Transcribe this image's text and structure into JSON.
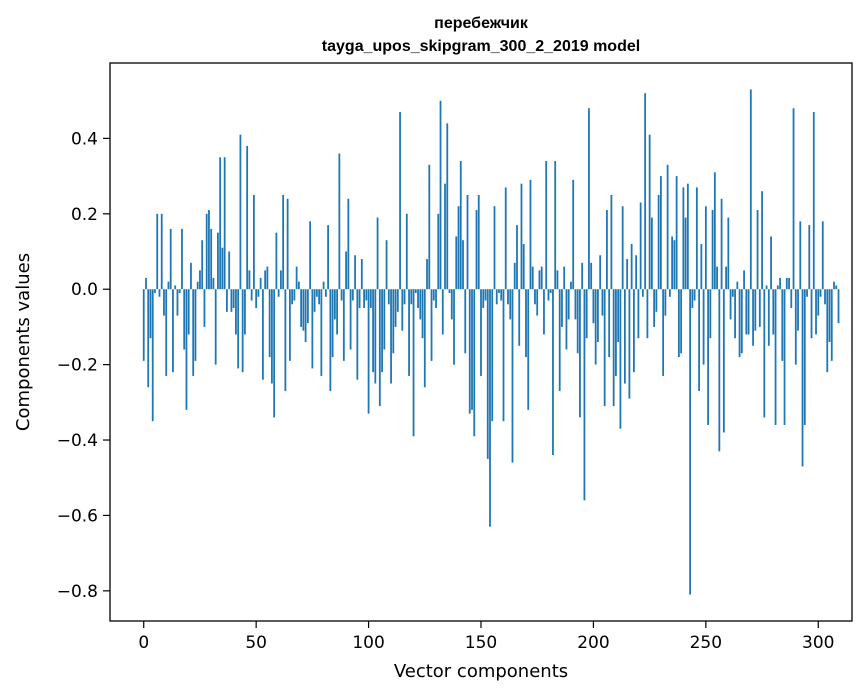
{
  "chart_data": {
    "type": "bar",
    "title": "перебежчик",
    "subtitle": "tayga_upos_skipgram_300_2_2019 model",
    "xlabel": "Vector components",
    "ylabel": "Components values",
    "xlim": [
      -15,
      315
    ],
    "ylim": [
      -0.88,
      0.6
    ],
    "xticks": [
      0,
      50,
      100,
      150,
      200,
      250,
      300
    ],
    "yticks": [
      -0.8,
      -0.6,
      -0.4,
      -0.2,
      0.0,
      0.2,
      0.4
    ],
    "ytick_labels": [
      "−0.8",
      "−0.6",
      "−0.4",
      "−0.2",
      "0.0",
      "0.2",
      "0.4"
    ],
    "bar_color": "#1f77b4",
    "grid": false,
    "values": [
      -0.19,
      0.03,
      -0.26,
      -0.13,
      -0.35,
      -0.01,
      0.2,
      -0.02,
      0.2,
      -0.07,
      -0.23,
      0.02,
      0.16,
      -0.22,
      0.01,
      -0.07,
      -0.01,
      0.16,
      -0.16,
      -0.32,
      -0.12,
      0.07,
      -0.23,
      -0.19,
      0.02,
      0.05,
      0.13,
      -0.1,
      0.2,
      0.21,
      0.16,
      0.03,
      -0.2,
      0.15,
      0.35,
      0.11,
      0.35,
      -0.06,
      0.1,
      -0.06,
      -0.05,
      -0.12,
      -0.21,
      0.41,
      -0.22,
      -0.12,
      0.38,
      0.05,
      -0.03,
      0.25,
      -0.05,
      -0.02,
      0.03,
      -0.24,
      0.05,
      0.06,
      -0.18,
      -0.25,
      -0.34,
      0.15,
      -0.02,
      0.05,
      0.25,
      -0.27,
      0.24,
      -0.19,
      -0.04,
      -0.03,
      0.06,
      0.02,
      -0.1,
      -0.11,
      -0.14,
      -0.09,
      0.18,
      -0.21,
      -0.06,
      -0.02,
      -0.04,
      -0.23,
      0.02,
      -0.02,
      0.17,
      -0.27,
      -0.18,
      -0.08,
      -0.12,
      0.36,
      -0.03,
      -0.19,
      0.1,
      0.24,
      -0.16,
      -0.03,
      0.09,
      -0.24,
      -0.05,
      0.08,
      -0.05,
      -0.03,
      -0.33,
      -0.05,
      -0.22,
      -0.25,
      0.19,
      -0.31,
      -0.22,
      -0.16,
      0.13,
      -0.04,
      -0.25,
      -0.17,
      -0.1,
      -0.06,
      0.47,
      -0.11,
      -0.04,
      0.2,
      -0.23,
      -0.04,
      -0.39,
      -0.01,
      -0.05,
      -0.08,
      -0.13,
      -0.26,
      0.08,
      0.33,
      -0.19,
      -0.03,
      -0.05,
      0.2,
      0.5,
      -0.12,
      0.28,
      0.44,
      -0.01,
      -0.08,
      -0.2,
      0.14,
      0.22,
      0.34,
      0.13,
      -0.17,
      0.25,
      -0.33,
      -0.32,
      -0.39,
      0.21,
      0.25,
      -0.23,
      -0.05,
      -0.03,
      -0.45,
      -0.63,
      -0.35,
      0.22,
      -0.04,
      -0.01,
      -0.03,
      -0.35,
      0.27,
      -0.04,
      -0.08,
      -0.46,
      0.07,
      0.17,
      -0.15,
      0.28,
      0.12,
      -0.18,
      -0.32,
      0.29,
      0.06,
      -0.04,
      -0.07,
      0.05,
      0.06,
      -0.12,
      0.34,
      -0.03,
      -0.01,
      -0.44,
      0.34,
      0.05,
      -0.27,
      -0.1,
      0.06,
      -0.16,
      -0.08,
      0.02,
      0.29,
      -0.08,
      -0.17,
      -0.34,
      0.07,
      -0.56,
      -0.13,
      0.48,
      0.07,
      -0.09,
      -0.2,
      -0.14,
      0.09,
      -0.07,
      -0.31,
      0.21,
      -0.18,
      0.25,
      -0.31,
      -0.23,
      -0.14,
      -0.37,
      0.22,
      -0.25,
      0.08,
      -0.29,
      0.12,
      -0.22,
      0.09,
      -0.13,
      0.23,
      -0.02,
      0.52,
      -0.13,
      0.41,
      0.19,
      -0.1,
      -0.06,
      0.25,
      0.3,
      -0.23,
      -0.07,
      0.33,
      -0.02,
      0.14,
      0.13,
      0.3,
      -0.18,
      -0.17,
      0.27,
      0.19,
      0.28,
      -0.81,
      -0.05,
      -0.03,
      0.27,
      -0.27,
      0.12,
      -0.2,
      0.22,
      -0.36,
      -0.13,
      0.21,
      0.31,
      0.06,
      -0.43,
      0.24,
      -0.38,
      0.06,
      0.19,
      -0.08,
      -0.02,
      -0.13,
      0.02,
      -0.18,
      -0.17,
      0.05,
      -0.12,
      -0.12,
      0.53,
      -0.15,
      -0.11,
      0.21,
      -0.1,
      0.26,
      -0.34,
      0.01,
      -0.15,
      0.14,
      -0.12,
      -0.36,
      0.01,
      0.03,
      -0.19,
      -0.36,
      0.03,
      0.03,
      -0.05,
      0.48,
      -0.2,
      -0.11,
      0.18,
      -0.47,
      -0.36,
      -0.02,
      0.17,
      -0.13,
      0.47,
      -0.12,
      -0.07,
      -0.02,
      0.18,
      -0.04,
      -0.22,
      -0.14,
      -0.19,
      0.02,
      0.01,
      -0.09
    ]
  }
}
